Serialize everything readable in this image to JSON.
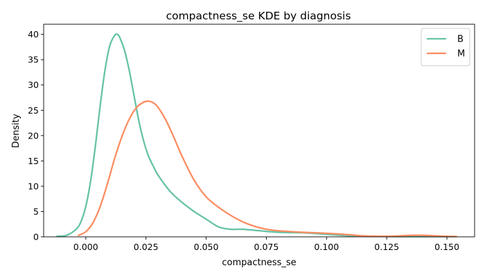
{
  "chart_data": {
    "type": "line",
    "title": "compactness_se KDE by diagnosis",
    "xlabel": "compactness_se",
    "ylabel": "Density",
    "xlim": [
      -0.0175,
      0.1615
    ],
    "ylim": [
      0,
      42
    ],
    "xticks": [
      0.0,
      0.025,
      0.05,
      0.075,
      0.1,
      0.125,
      0.15
    ],
    "xtick_labels": [
      "0.000",
      "0.025",
      "0.050",
      "0.075",
      "0.100",
      "0.125",
      "0.150"
    ],
    "yticks": [
      0,
      5,
      10,
      15,
      20,
      25,
      30,
      35,
      40
    ],
    "ytick_labels": [
      "0",
      "5",
      "10",
      "15",
      "20",
      "25",
      "30",
      "35",
      "40"
    ],
    "grid": false,
    "legend_position": "top-right",
    "series": [
      {
        "name": "B",
        "color": "#66c2a5",
        "x": [
          -0.012,
          -0.008,
          -0.004,
          -0.002,
          0.0,
          0.002,
          0.004,
          0.006,
          0.008,
          0.01,
          0.012,
          0.013,
          0.014,
          0.016,
          0.018,
          0.02,
          0.022,
          0.024,
          0.026,
          0.028,
          0.03,
          0.035,
          0.04,
          0.045,
          0.05,
          0.055,
          0.06,
          0.065,
          0.07,
          0.08,
          0.09,
          0.1,
          0.11,
          0.12,
          0.13,
          0.14,
          0.15,
          0.153
        ],
        "y": [
          0.1,
          0.3,
          1.5,
          3.0,
          6.0,
          11.0,
          18.0,
          26.0,
          33.0,
          37.8,
          39.8,
          40.0,
          39.5,
          37.0,
          33.0,
          28.0,
          23.0,
          19.0,
          16.0,
          14.0,
          12.2,
          9.0,
          6.8,
          5.0,
          3.5,
          2.0,
          1.5,
          1.5,
          1.3,
          0.9,
          0.8,
          0.5,
          0.2,
          0.1,
          0.05,
          0.05,
          0.05,
          0.05
        ]
      },
      {
        "name": "M",
        "color": "#fc8d62",
        "x": [
          -0.003,
          0.0,
          0.003,
          0.006,
          0.009,
          0.012,
          0.015,
          0.018,
          0.021,
          0.024,
          0.026,
          0.028,
          0.03,
          0.033,
          0.036,
          0.04,
          0.045,
          0.05,
          0.055,
          0.06,
          0.065,
          0.07,
          0.075,
          0.08,
          0.09,
          0.1,
          0.11,
          0.115,
          0.125,
          0.135,
          0.14,
          0.145,
          0.15,
          0.154
        ],
        "y": [
          0.3,
          1.0,
          2.8,
          6.0,
          10.5,
          15.5,
          19.8,
          23.2,
          25.5,
          26.6,
          26.8,
          26.5,
          25.6,
          23.3,
          20.3,
          15.9,
          11.2,
          7.9,
          5.9,
          4.3,
          3.0,
          2.1,
          1.5,
          1.2,
          0.9,
          0.7,
          0.4,
          0.2,
          0.1,
          0.3,
          0.3,
          0.2,
          0.1,
          0.05
        ]
      }
    ]
  }
}
